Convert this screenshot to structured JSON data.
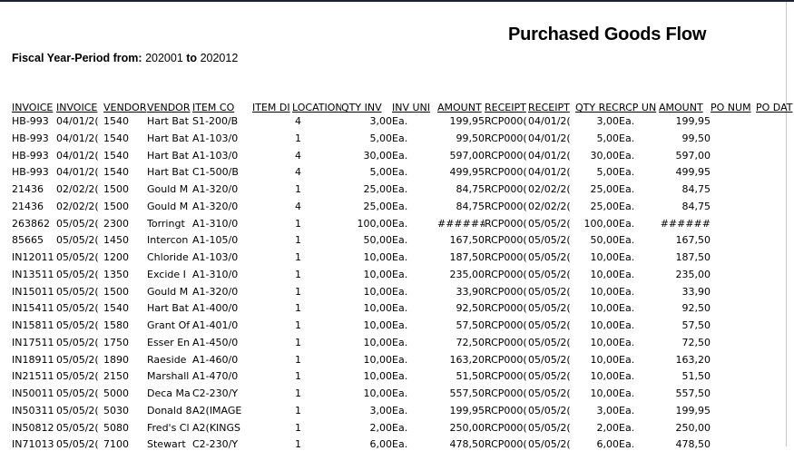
{
  "report": {
    "title": "Purchased Goods Flow",
    "fiscal_label": "Fiscal Year-Period from:",
    "from_value": "202001",
    "to_label": "to",
    "to_value": "202012"
  },
  "table": {
    "headers": [
      "INVOICE",
      "INVOICE",
      "VENDOR",
      "VENDOR",
      "ITEM CO",
      "ITEM DI",
      "LOCATION",
      "QTY INV",
      "INV UNI",
      "AMOUNT",
      "RECEIPT",
      "RECEIPT",
      "QTY REC",
      "RCP UN",
      "AMOUNT",
      "PO NUM",
      "PO DAT"
    ],
    "rows": [
      [
        "HB-993",
        "04/01/2(",
        "1540",
        "Hart Bat",
        "S1-200/B",
        "",
        "4",
        "3,00",
        "Ea.",
        "199,95",
        "RCP000(",
        "04/01/2(",
        "3,00",
        "Ea.",
        "199,95",
        "",
        ""
      ],
      [
        "HB-993",
        "04/01/2(",
        "1540",
        "Hart Bat",
        "A1-103/0",
        "",
        "1",
        "5,00",
        "Ea.",
        "99,50",
        "RCP000(",
        "04/01/2(",
        "5,00",
        "Ea.",
        "99,50",
        "",
        ""
      ],
      [
        "HB-993",
        "04/01/2(",
        "1540",
        "Hart Bat",
        "A1-103/0",
        "",
        "4",
        "30,00",
        "Ea.",
        "597,00",
        "RCP000(",
        "04/01/2(",
        "30,00",
        "Ea.",
        "597,00",
        "",
        ""
      ],
      [
        "HB-993",
        "04/01/2(",
        "1540",
        "Hart Bat",
        "C1-500/B",
        "",
        "4",
        "5,00",
        "Ea.",
        "499,95",
        "RCP000(",
        "04/01/2(",
        "5,00",
        "Ea.",
        "499,95",
        "",
        ""
      ],
      [
        "21436",
        "02/02/2(",
        "1500",
        "Gould M",
        "A1-320/0",
        "",
        "1",
        "25,00",
        "Ea.",
        "84,75",
        "RCP000(",
        "02/02/2(",
        "25,00",
        "Ea.",
        "84,75",
        "",
        ""
      ],
      [
        "21436",
        "02/02/2(",
        "1500",
        "Gould M",
        "A1-320/0",
        "",
        "4",
        "25,00",
        "Ea.",
        "84,75",
        "RCP000(",
        "02/02/2(",
        "25,00",
        "Ea.",
        "84,75",
        "",
        ""
      ],
      [
        "263862",
        "05/05/2(",
        "2300",
        "Torringt",
        "A1-310/0",
        "",
        "1",
        "100,00",
        "Ea.",
        "######",
        "RCP000(",
        "05/05/2(",
        "100,00",
        "Ea.",
        "######",
        "",
        ""
      ],
      [
        "85665",
        "05/05/2(",
        "1450",
        "Intercon",
        "A1-105/0",
        "",
        "1",
        "50,00",
        "Ea.",
        "167,50",
        "RCP000(",
        "05/05/2(",
        "50,00",
        "Ea.",
        "167,50",
        "",
        ""
      ],
      [
        "IN12011",
        "05/05/2(",
        "1200",
        "Chloride",
        "A1-103/0",
        "",
        "1",
        "10,00",
        "Ea.",
        "187,50",
        "RCP000(",
        "05/05/2(",
        "10,00",
        "Ea.",
        "187,50",
        "",
        ""
      ],
      [
        "IN13511",
        "05/05/2(",
        "1350",
        "Excide I",
        "A1-310/0",
        "",
        "1",
        "10,00",
        "Ea.",
        "235,00",
        "RCP000(",
        "05/05/2(",
        "10,00",
        "Ea.",
        "235,00",
        "",
        ""
      ],
      [
        "IN15011",
        "05/05/2(",
        "1500",
        "Gould M",
        "A1-320/0",
        "",
        "1",
        "10,00",
        "Ea.",
        "33,90",
        "RCP000(",
        "05/05/2(",
        "10,00",
        "Ea.",
        "33,90",
        "",
        ""
      ],
      [
        "IN15411",
        "05/05/2(",
        "1540",
        "Hart Bat",
        "A1-400/0",
        "",
        "1",
        "10,00",
        "Ea.",
        "92,50",
        "RCP000(",
        "05/05/2(",
        "10,00",
        "Ea.",
        "92,50",
        "",
        ""
      ],
      [
        "IN15811",
        "05/05/2(",
        "1580",
        "Grant Of",
        "A1-401/0",
        "",
        "1",
        "10,00",
        "Ea.",
        "57,50",
        "RCP000(",
        "05/05/2(",
        "10,00",
        "Ea.",
        "57,50",
        "",
        ""
      ],
      [
        "IN17511",
        "05/05/2(",
        "1750",
        "Esser En",
        "A1-450/0",
        "",
        "1",
        "10,00",
        "Ea.",
        "72,50",
        "RCP000(",
        "05/05/2(",
        "10,00",
        "Ea.",
        "72,50",
        "",
        ""
      ],
      [
        "IN18911",
        "05/05/2(",
        "1890",
        "Raeside",
        "A1-460/0",
        "",
        "1",
        "10,00",
        "Ea.",
        "163,20",
        "RCP000(",
        "05/05/2(",
        "10,00",
        "Ea.",
        "163,20",
        "",
        ""
      ],
      [
        "IN21511",
        "05/05/2(",
        "2150",
        "Marshall",
        "A1-470/0",
        "",
        "1",
        "10,00",
        "Ea.",
        "51,50",
        "RCP000(",
        "05/05/2(",
        "10,00",
        "Ea.",
        "51,50",
        "",
        ""
      ],
      [
        "IN50011",
        "05/05/2(",
        "5000",
        "Deca Ma",
        "C2-230/Y",
        "",
        "1",
        "10,00",
        "Ea.",
        "557,50",
        "RCP000(",
        "05/05/2(",
        "10,00",
        "Ea.",
        "557,50",
        "",
        ""
      ],
      [
        "IN50311",
        "05/05/2(",
        "5030",
        "Donald 8",
        "A2(IMAGE",
        "",
        "1",
        "3,00",
        "Ea.",
        "199,95",
        "RCP000(",
        "05/05/2(",
        "3,00",
        "Ea.",
        "199,95",
        "",
        ""
      ],
      [
        "IN50812",
        "05/05/2(",
        "5080",
        "Fred's Cl",
        "A2(KINGS",
        "",
        "1",
        "2,00",
        "Ea.",
        "250,00",
        "RCP000(",
        "05/05/2(",
        "2,00",
        "Ea.",
        "250,00",
        "",
        ""
      ],
      [
        "IN71013",
        "05/05/2(",
        "7100",
        "Stewart",
        "C2-230/Y",
        "",
        "1",
        "6,00",
        "Ea.",
        "478,50",
        "RCP000(",
        "05/05/2(",
        "6,00",
        "Ea.",
        "478,50",
        "",
        ""
      ]
    ]
  }
}
